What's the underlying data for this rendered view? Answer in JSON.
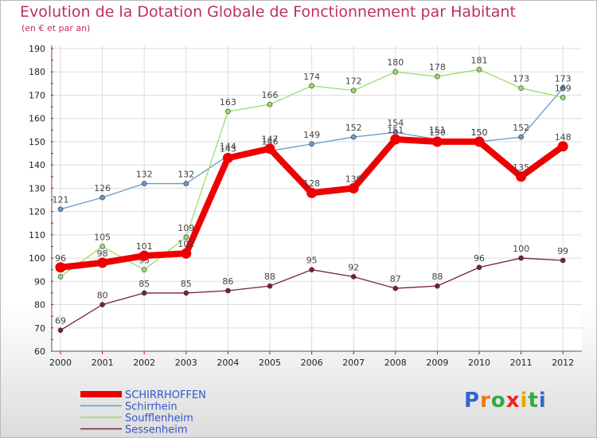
{
  "chart_data": {
    "type": "line",
    "title": "Evolution de la Dotation Globale de Fonctionnement par Habitant",
    "subtitle": "(en € et par an)",
    "xlabel": "",
    "ylabel": "",
    "ylim": [
      60,
      190
    ],
    "yticks": [
      60,
      70,
      80,
      90,
      100,
      110,
      120,
      130,
      140,
      150,
      160,
      170,
      180,
      190
    ],
    "categories": [
      "2000",
      "2001",
      "2002",
      "2003",
      "2004",
      "2005",
      "2006",
      "2007",
      "2008",
      "2009",
      "2010",
      "2011",
      "2012"
    ],
    "grid": true,
    "legend_position": "bottom-left",
    "series": [
      {
        "name": "Schirrhein",
        "color": "#6699cc",
        "values": [
          121,
          126,
          132,
          132,
          144,
          146,
          149,
          152,
          154,
          151,
          150,
          152,
          173
        ],
        "labels": [
          "121",
          "126",
          "132",
          "132",
          "144",
          "146",
          "149",
          "152",
          "154",
          "151",
          "150",
          "152",
          "173"
        ]
      },
      {
        "name": "Soufflenheim",
        "color": "#99dd66",
        "values": [
          92,
          105,
          95,
          109,
          163,
          166,
          174,
          172,
          180,
          178,
          181,
          173,
          169
        ],
        "labels": [
          "92",
          "105",
          "95",
          "109",
          "163",
          "166",
          "174",
          "172",
          "180",
          "178",
          "181",
          "173",
          "169"
        ]
      },
      {
        "name": "Sessenheim",
        "color": "#772233",
        "values": [
          69,
          80,
          85,
          85,
          86,
          88,
          95,
          92,
          87,
          88,
          96,
          100,
          99
        ],
        "labels": [
          "69",
          "80",
          "85",
          "85",
          "86",
          "88",
          "95",
          "92",
          "87",
          "88",
          "96",
          "100",
          "99"
        ]
      },
      {
        "name": "SCHIRRHOFFEN",
        "color": "#ee0000",
        "values": [
          96,
          98,
          101,
          102,
          143,
          147,
          128,
          130,
          151,
          150,
          150,
          135,
          148
        ],
        "labels": [
          "96",
          "98",
          "101",
          "102",
          "143",
          "147",
          "128",
          "130",
          "151",
          "150",
          "150",
          "135",
          "148"
        ]
      }
    ],
    "legend": [
      {
        "name": "SCHIRRHOFFEN",
        "color": "#ee0000"
      },
      {
        "name": "Schirrhein",
        "color": "#6699cc"
      },
      {
        "name": "Soufflenheim",
        "color": "#99dd66"
      },
      {
        "name": "Sessenheim",
        "color": "#772233"
      }
    ]
  },
  "brand": {
    "text": "Proxiti"
  }
}
